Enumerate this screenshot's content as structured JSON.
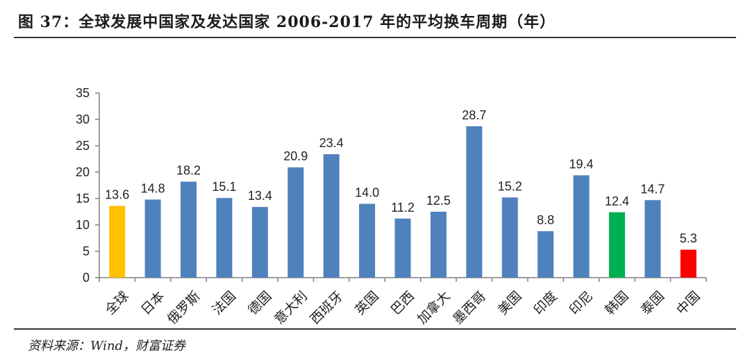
{
  "header": {
    "title": "图 37：全球发展中国家及发达国家 2006-2017 年的平均换车周期（年）"
  },
  "footer": {
    "source": "资料来源：Wind，财富证券"
  },
  "colors": {
    "default_bar": "#4F81BD",
    "global_bar": "#FFC000",
    "korea_bar": "#00B050",
    "china_bar": "#FF0000"
  },
  "chart_data": {
    "type": "bar",
    "categories": [
      "全球",
      "日本",
      "俄罗斯",
      "法国",
      "德国",
      "意大利",
      "西班牙",
      "英国",
      "巴西",
      "加拿大",
      "墨西哥",
      "美国",
      "印度",
      "印尼",
      "韩国",
      "泰国",
      "中国"
    ],
    "values": [
      13.6,
      14.8,
      18.2,
      15.1,
      13.4,
      20.9,
      23.4,
      14.0,
      11.2,
      12.5,
      28.7,
      15.2,
      8.8,
      19.4,
      12.4,
      14.7,
      5.3
    ],
    "value_labels": [
      "13.6",
      "14.8",
      "18.2",
      "15.1",
      "13.4",
      "20.9",
      "23.4",
      "14.0",
      "11.2",
      "12.5",
      "28.7",
      "15.2",
      "8.8",
      "19.4",
      "12.4",
      "14.7",
      "5.3"
    ],
    "bar_colors": [
      "#FFC000",
      "#4F81BD",
      "#4F81BD",
      "#4F81BD",
      "#4F81BD",
      "#4F81BD",
      "#4F81BD",
      "#4F81BD",
      "#4F81BD",
      "#4F81BD",
      "#4F81BD",
      "#4F81BD",
      "#4F81BD",
      "#4F81BD",
      "#00B050",
      "#4F81BD",
      "#FF0000"
    ],
    "ylim": [
      0,
      35
    ],
    "yticks": [
      0,
      5,
      10,
      15,
      20,
      25,
      30,
      35
    ],
    "grid": false,
    "legend": "none"
  }
}
